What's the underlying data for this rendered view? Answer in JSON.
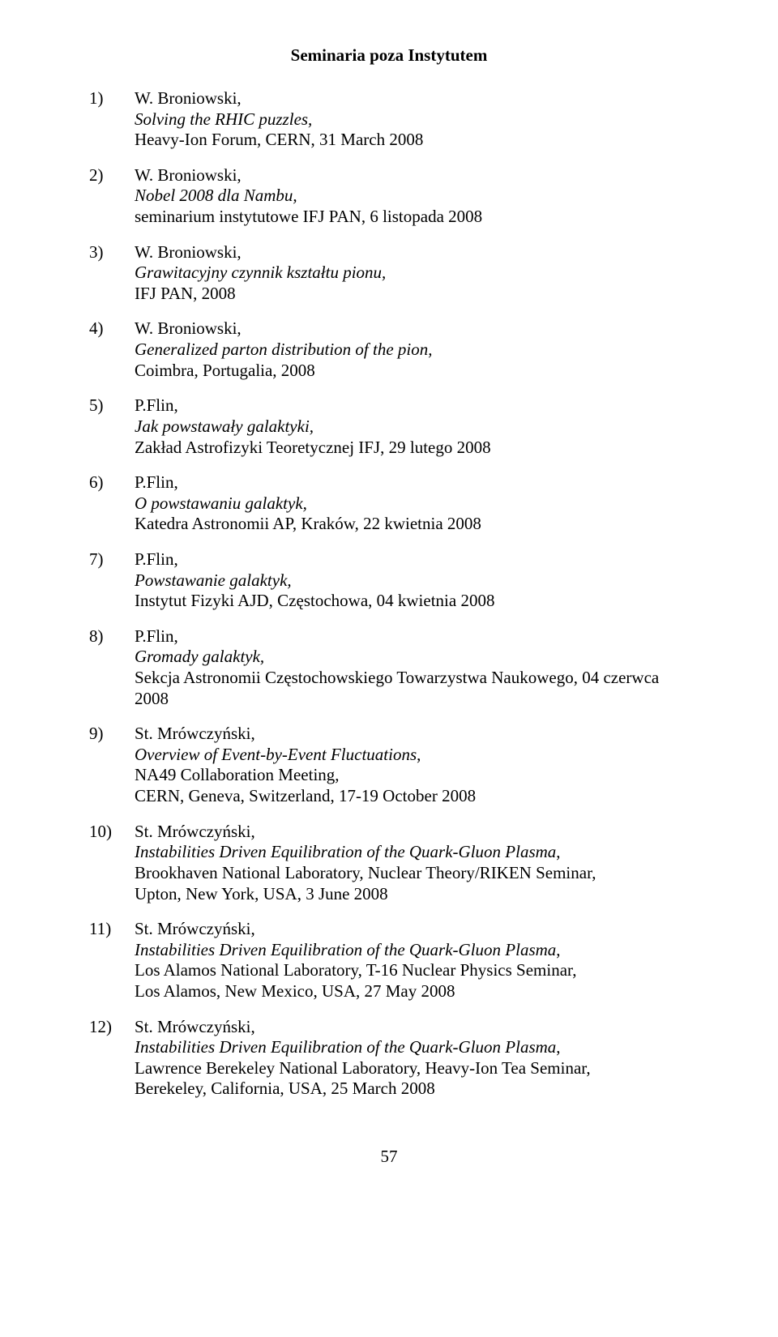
{
  "title": "Seminaria poza Instytutem",
  "entries": [
    {
      "num": "1)",
      "presenter": "W. Broniowski,",
      "talk": "Solving the RHIC puzzles,",
      "venues": [
        "Heavy-Ion Forum, CERN, 31 March 2008"
      ]
    },
    {
      "num": "2)",
      "presenter": "W. Broniowski,",
      "talk": "Nobel 2008 dla Nambu,",
      "venues": [
        "seminarium instytutowe IFJ PAN, 6 listopada 2008"
      ]
    },
    {
      "num": "3)",
      "presenter": "W. Broniowski,",
      "talk": "Grawitacyjny czynnik kształtu pionu,",
      "venues": [
        "IFJ PAN, 2008"
      ]
    },
    {
      "num": "4)",
      "presenter": "W. Broniowski,",
      "talk": "Generalized parton distribution of the pion,",
      "venues": [
        "Coimbra, Portugalia, 2008"
      ]
    },
    {
      "num": "5)",
      "presenter": "P.Flin,",
      "talk": "Jak powstawały galaktyki,",
      "venues": [
        "Zakład Astrofizyki Teoretycznej IFJ, 29 lutego 2008"
      ]
    },
    {
      "num": "6)",
      "presenter": "P.Flin,",
      "talk": "O powstawaniu galaktyk,",
      "venues": [
        "Katedra Astronomii AP, Kraków, 22 kwietnia 2008"
      ]
    },
    {
      "num": "7)",
      "presenter": "P.Flin,",
      "talk": "Powstawanie galaktyk,",
      "venues": [
        "Instytut Fizyki AJD, Częstochowa, 04 kwietnia 2008"
      ]
    },
    {
      "num": "8)",
      "presenter": "P.Flin,",
      "talk": "Gromady galaktyk,",
      "venues": [
        "Sekcja Astronomii Częstochowskiego Towarzystwa Naukowego, 04 czerwca 2008"
      ]
    },
    {
      "num": "9)",
      "presenter": "St. Mrówczyński,",
      "talk": "Overview of Event-by-Event Fluctuations",
      "talk_suffix": ",",
      "venues": [
        "NA49 Collaboration Meeting,",
        "CERN, Geneva, Switzerland, 17-19 October 2008"
      ]
    },
    {
      "num": "10)",
      "presenter": "St. Mrówczyński,",
      "talk": "Instabilities Driven Equilibration of the Quark-Gluon Plasma",
      "talk_suffix": ",",
      "venues": [
        "Brookhaven National Laboratory, Nuclear Theory/RIKEN Seminar,",
        "Upton, New York, USA, 3 June 2008"
      ]
    },
    {
      "num": "11)",
      "presenter": "St. Mrówczyński,",
      "talk": "Instabilities Driven Equilibration of the Quark-Gluon Plasma",
      "talk_suffix": ",",
      "venues": [
        "Los Alamos National Laboratory, T-16 Nuclear Physics Seminar,",
        "Los Alamos, New Mexico, USA, 27 May 2008"
      ]
    },
    {
      "num": "12)",
      "presenter": "St. Mrówczyński,",
      "talk": "Instabilities Driven Equilibration of the Quark-Gluon Plasma",
      "talk_suffix": ",",
      "venues": [
        "Lawrence Berekeley National Laboratory, Heavy-Ion Tea Seminar,",
        "Berekeley, California, USA, 25 March 2008"
      ]
    }
  ],
  "page_number": "57"
}
